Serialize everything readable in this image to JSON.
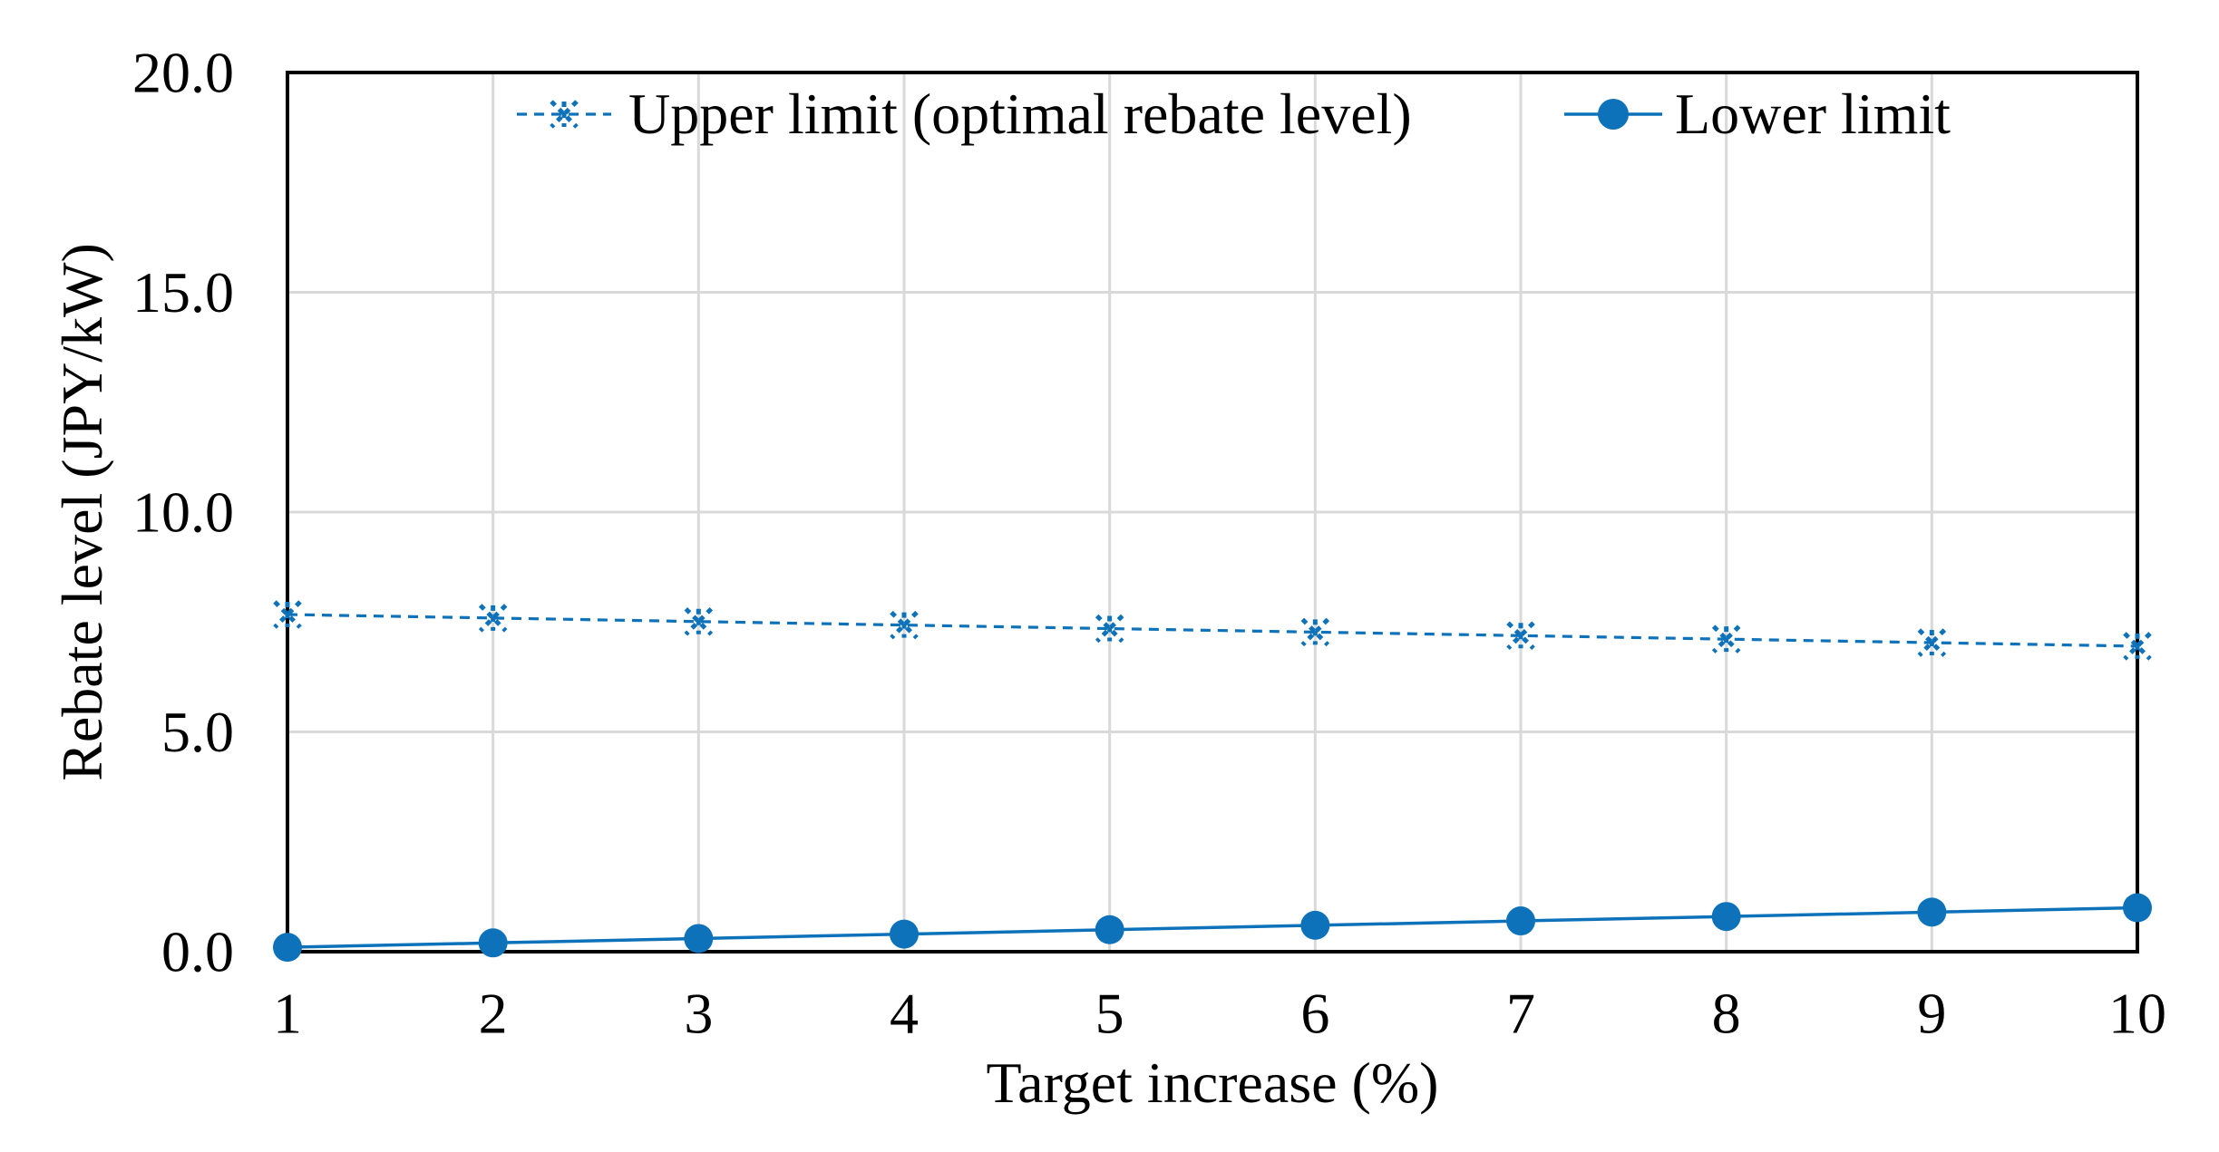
{
  "chart_data": {
    "type": "line",
    "title": "",
    "xlabel": "Target increase (%)",
    "ylabel": "Rebate level (JPY/kW)",
    "x": [
      1,
      2,
      3,
      4,
      5,
      6,
      7,
      8,
      9,
      10
    ],
    "x_tick_labels": [
      "1",
      "2",
      "3",
      "4",
      "5",
      "6",
      "7",
      "8",
      "9",
      "10"
    ],
    "ylim": [
      0,
      20
    ],
    "yticks": [
      0,
      5,
      10,
      15,
      20
    ],
    "y_tick_labels": [
      "0.0",
      "5.0",
      "10.0",
      "15.0",
      "20.0"
    ],
    "grid": "both",
    "legend_position": "top-inside-horizontal",
    "series": [
      {
        "name": "Upper limit (optimal rebate level)",
        "line_style": "dashed",
        "marker": "asterisk",
        "color": "#0E72BA",
        "values": [
          7.67,
          7.59,
          7.51,
          7.43,
          7.35,
          7.27,
          7.19,
          7.11,
          7.03,
          6.95
        ]
      },
      {
        "name": "Lower limit",
        "line_style": "solid",
        "marker": "circle",
        "color": "#0E72BA",
        "values": [
          0.1,
          0.2,
          0.3,
          0.4,
          0.5,
          0.6,
          0.7,
          0.8,
          0.9,
          1.0
        ]
      }
    ]
  },
  "colors": {
    "accent_blue": "#0E72BA",
    "gridline": "#D9D9D9",
    "axis": "#000000",
    "text": "#000000",
    "background": "#FFFFFF"
  }
}
